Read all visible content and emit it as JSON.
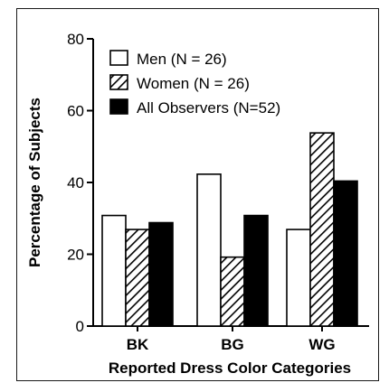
{
  "chart_data": {
    "type": "bar",
    "categories": [
      "BK",
      "BG",
      "WG"
    ],
    "series": [
      {
        "name": "Men (N = 26)",
        "values": [
          30.8,
          42.3,
          26.9
        ],
        "style": "open"
      },
      {
        "name": "Women (N = 26)",
        "values": [
          26.9,
          19.2,
          53.8
        ],
        "style": "hatched"
      },
      {
        "name": "All Observers (N=52)",
        "values": [
          28.8,
          30.8,
          40.4
        ],
        "style": "filled"
      }
    ],
    "title": "",
    "xlabel": "Reported Dress Color Categories",
    "ylabel": "Percentage of Subjects",
    "ylim": [
      0,
      80
    ],
    "yticks": [
      "0",
      "20",
      "40",
      "60",
      "80"
    ],
    "grid": false,
    "legend_position": "top-left"
  }
}
